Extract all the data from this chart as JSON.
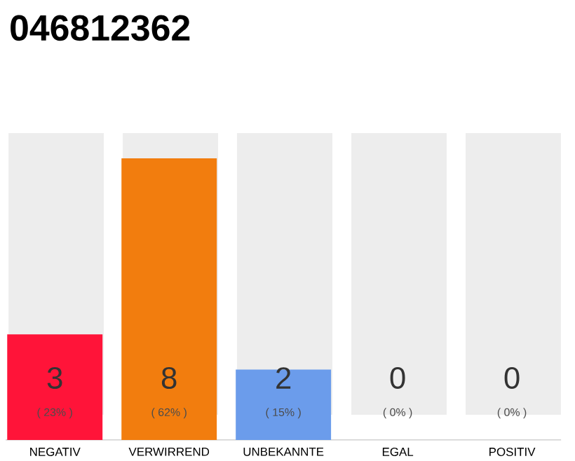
{
  "chart_data": {
    "type": "bar",
    "title": "046812362",
    "categories": [
      "NEGATIV",
      "VERWIRREND",
      "UNBEKANNTE",
      "EGAL",
      "POSITIV"
    ],
    "values": [
      3,
      8,
      2,
      0,
      0
    ],
    "colors": [
      "#ff1439",
      "#f27d0e",
      "#6b9ceb",
      "#9e9e9e",
      "#9e9e9e"
    ],
    "value_labels": [
      "3",
      "8",
      "2",
      "0",
      "0"
    ],
    "annotations": [
      "( 23% )",
      "( 62% )",
      "( 15% )",
      "( 0% )",
      "( 0% )"
    ]
  }
}
